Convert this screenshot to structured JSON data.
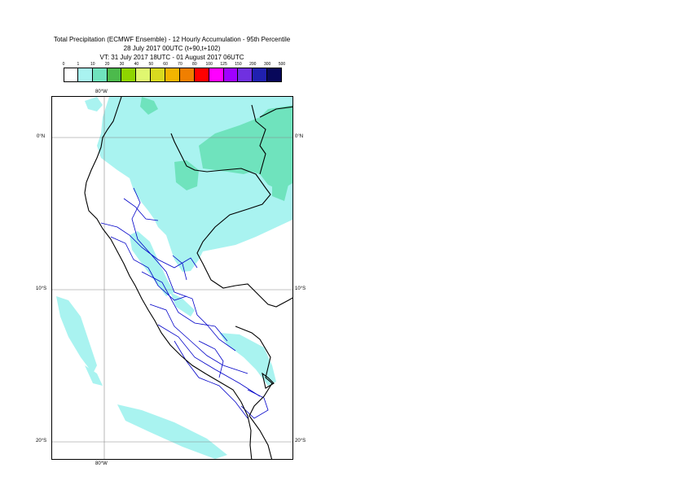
{
  "title": {
    "line1": "Total Precipitation (ECMWF Ensemble) - 12 Hourly Accumulation - 95th Percentile",
    "line2": "28 July 2017 00UTC (t+90,t+102)",
    "line3": "VT: 31 July 2017 18UTC - 01 August 2017 06UTC"
  },
  "legend": {
    "thresholds": [
      "0",
      "1",
      "10",
      "20",
      "30",
      "40",
      "50",
      "60",
      "70",
      "80",
      "100",
      "125",
      "150",
      "200",
      "300",
      "500"
    ],
    "colors": [
      "#ffffff",
      "#a9f3f0",
      "#6fe3bd",
      "#4cba4c",
      "#8fd500",
      "#e0f770",
      "#d8da1f",
      "#f3b400",
      "#f07f00",
      "#ff0000",
      "#ff00ff",
      "#a000ff",
      "#7030e0",
      "#2020b0",
      "#08085a"
    ]
  },
  "axes": {
    "lon_top": "80°W",
    "lon_bottom": "80°W",
    "lat_0_left": "0°N",
    "lat_0_right": "0°N",
    "lat_10_left": "10°S",
    "lat_10_right": "10°S",
    "lat_20_left": "20°S",
    "lat_20_right": "20°S"
  },
  "map_colors": {
    "light_precip": "#a9f3f0",
    "moderate_precip": "#6fe3bd",
    "coast": "#000000",
    "borders_internal": "#0000c8",
    "grid": "#888888"
  }
}
